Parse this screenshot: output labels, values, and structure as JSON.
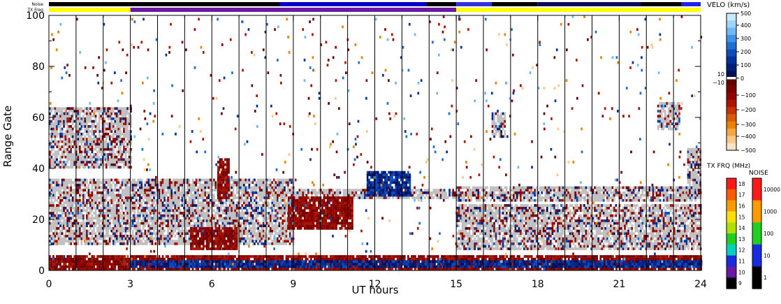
{
  "chart_data": {
    "type": "heatmap",
    "title": "",
    "xlabel": "UT hours",
    "ylabel": "Range Gate",
    "x_range": [
      0,
      24
    ],
    "y_range": [
      0,
      100
    ],
    "x_ticks": [
      "0",
      "3",
      "6",
      "9",
      "12",
      "15",
      "18",
      "21",
      "24"
    ],
    "y_ticks": [
      "0",
      "20",
      "40",
      "60",
      "80",
      "100"
    ],
    "grid": "vertical lines every hour",
    "header_bars": [
      {
        "label": "Noise",
        "segments": [
          {
            "from": 0,
            "to": 8.5,
            "color": "#000000"
          },
          {
            "from": 8.5,
            "to": 13.9,
            "color": "#0000c8"
          },
          {
            "from": 13.9,
            "to": 15.0,
            "color": "#000000"
          },
          {
            "from": 15.0,
            "to": 16.3,
            "color": "#3030e0"
          },
          {
            "from": 16.3,
            "to": 18.0,
            "color": "#000000"
          },
          {
            "from": 18.0,
            "to": 21.8,
            "color": "#0a0a60"
          },
          {
            "from": 21.8,
            "to": 23.3,
            "color": "#000000"
          },
          {
            "from": 23.3,
            "to": 24.0,
            "color": "#2020e8"
          }
        ]
      },
      {
        "label": "TX Freq",
        "segments": [
          {
            "from": 0,
            "to": 3.0,
            "color": "#ffff00"
          },
          {
            "from": 3.0,
            "to": 15.0,
            "color": "#6a1aa0"
          },
          {
            "from": 15.0,
            "to": 24.0,
            "color": "#ffff00"
          }
        ]
      }
    ],
    "velocity_colorbar": {
      "title": "VELO (km/s)",
      "ticks": [
        "500",
        "400",
        "300",
        "200",
        "100",
        "0",
        "10",
        "−10",
        "−100",
        "−200",
        "−300",
        "−400",
        "−500"
      ],
      "colors_top_to_bottom": [
        "#c8e8ff",
        "#9fd4ff",
        "#6eb8f5",
        "#3f93e8",
        "#1f6ed8",
        "#0b4cbe",
        "#02309c",
        "#001f7a",
        "#00105a",
        "#600000",
        "#7a0000",
        "#960000",
        "#b01400",
        "#c83200",
        "#dc5a00",
        "#ec8200",
        "#f5a640",
        "#fbc888",
        "#fde2c4"
      ],
      "ground_scatter_color": "#c0c0c0"
    },
    "txfreq_colorbar": {
      "title": "TX FRQ (MHz)",
      "ticks": [
        "18",
        "17",
        "16",
        "15",
        "14",
        "13",
        "12",
        "11",
        "10",
        "9"
      ],
      "colors_top_to_bottom": [
        "#ff1a1a",
        "#ff5a00",
        "#ff9a00",
        "#ffe000",
        "#b0e000",
        "#20d020",
        "#00d0c0",
        "#1a2ae0",
        "#6a1aa0",
        "#000000"
      ]
    },
    "noise_colorbar": {
      "title": "NOISE",
      "ticks": [
        "10000",
        "1000",
        "100",
        "10",
        "1"
      ],
      "colors_top_to_bottom": [
        "#ff1a1a",
        "#ff9a00",
        "#20d020",
        "#1a2ae0",
        "#000000"
      ]
    },
    "regions": [
      {
        "kind": "ground",
        "t0": 0.0,
        "t1": 3.0,
        "g0": 40,
        "g1": 64
      },
      {
        "kind": "ground",
        "t0": 0.0,
        "t1": 9.0,
        "g0": 10,
        "g1": 36
      },
      {
        "kind": "ground",
        "t0": 9.0,
        "t1": 15.0,
        "g0": 28,
        "g1": 32
      },
      {
        "kind": "ground",
        "t0": 15.0,
        "t1": 24.0,
        "g0": 8,
        "g1": 26
      },
      {
        "kind": "ground",
        "t0": 15.0,
        "t1": 24.0,
        "g0": 27,
        "g1": 33
      },
      {
        "kind": "ground",
        "t0": 23.5,
        "t1": 24.0,
        "g0": 30,
        "g1": 48
      },
      {
        "kind": "ground",
        "t0": 16.3,
        "t1": 16.8,
        "g0": 52,
        "g1": 62
      },
      {
        "kind": "ground",
        "t0": 22.4,
        "t1": 23.2,
        "g0": 55,
        "g1": 66
      },
      {
        "kind": "neg",
        "t0": 8.8,
        "t1": 11.2,
        "g0": 16,
        "g1": 29
      },
      {
        "kind": "neg",
        "t0": 5.2,
        "t1": 6.9,
        "g0": 8,
        "g1": 17
      },
      {
        "kind": "neg",
        "t0": 6.2,
        "t1": 6.6,
        "g0": 28,
        "g1": 44
      },
      {
        "kind": "neg",
        "t0": 0.0,
        "t1": 24.0,
        "g0": 0,
        "g1": 6
      },
      {
        "kind": "pos",
        "t0": 11.7,
        "t1": 13.3,
        "g0": 29,
        "g1": 39
      },
      {
        "kind": "pos",
        "t0": 3.0,
        "t1": 24.0,
        "g0": 1,
        "g1": 4
      }
    ]
  }
}
